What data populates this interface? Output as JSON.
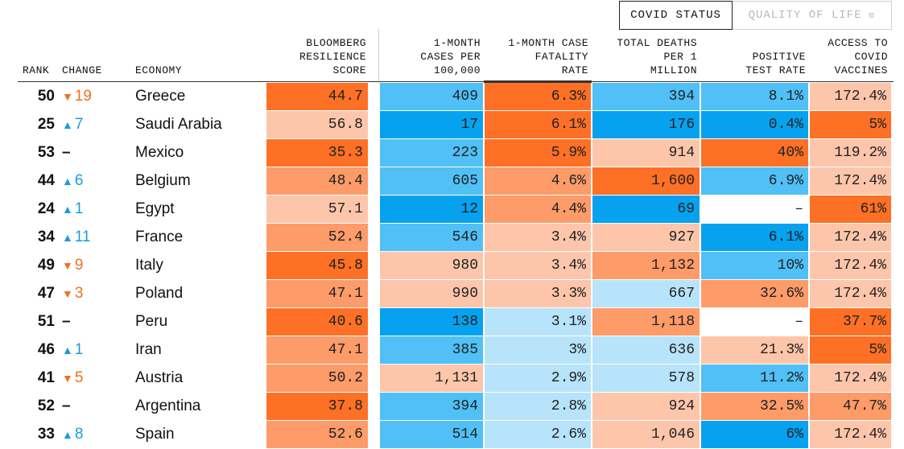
{
  "tabs": {
    "covid_status": "COVID STATUS",
    "quality_of_life": "QUALITY OF LIFE",
    "filter_icon": "filter-icon"
  },
  "columns": {
    "rank": "RANK",
    "change": "CHANGE",
    "economy": "ECONOMY",
    "score": [
      "BLOOMBERG",
      "RESILIENCE",
      "SCORE"
    ],
    "cases": [
      "1-MONTH",
      "CASES PER",
      "100,000"
    ],
    "fatality": [
      "1-MONTH CASE",
      "FATALITY",
      "RATE"
    ],
    "deaths": [
      "TOTAL DEATHS",
      "PER 1",
      "MILLION"
    ],
    "positive": [
      "POSITIVE",
      "TEST RATE"
    ],
    "vaccines": [
      "ACCESS TO",
      "COVID",
      "VACCINES"
    ]
  },
  "colors": {
    "orange_dark": "#fd7025",
    "orange_mid": "#fd9b69",
    "orange_light": "#fdc6ab",
    "blue_dark": "#06a2ef",
    "blue_mid": "#50c0f6",
    "blue_light": "#b7e4fa",
    "empty": "#ffffff",
    "arrow_up": "#1a9bdc",
    "arrow_down": "#f3701f"
  },
  "rows": [
    {
      "rank": "50",
      "dir": "down",
      "change": "19",
      "economy": "Greece",
      "score": "44.7",
      "cases": "409",
      "fatality": "6.3%",
      "deaths": "394",
      "positive": "8.1%",
      "vaccines": "172.4%",
      "c": [
        "od",
        "bm",
        "od",
        "bm",
        "bm",
        "ol"
      ]
    },
    {
      "rank": "25",
      "dir": "up",
      "change": "7",
      "economy": "Saudi Arabia",
      "score": "56.8",
      "cases": "17",
      "fatality": "6.1%",
      "deaths": "176",
      "positive": "0.4%",
      "vaccines": "5%",
      "c": [
        "ol",
        "bd",
        "od",
        "bd",
        "bd",
        "od"
      ]
    },
    {
      "rank": "53",
      "dir": "flat",
      "change": "–",
      "economy": "Mexico",
      "score": "35.3",
      "cases": "223",
      "fatality": "5.9%",
      "deaths": "914",
      "positive": "40%",
      "vaccines": "119.2%",
      "c": [
        "od",
        "bm",
        "od",
        "ol",
        "od",
        "ol"
      ]
    },
    {
      "rank": "44",
      "dir": "up",
      "change": "6",
      "economy": "Belgium",
      "score": "48.4",
      "cases": "605",
      "fatality": "4.6%",
      "deaths": "1,600",
      "positive": "6.9%",
      "vaccines": "172.4%",
      "c": [
        "om",
        "bm",
        "om",
        "od",
        "bm",
        "ol"
      ]
    },
    {
      "rank": "24",
      "dir": "up",
      "change": "1",
      "economy": "Egypt",
      "score": "57.1",
      "cases": "12",
      "fatality": "4.4%",
      "deaths": "69",
      "positive": "–",
      "vaccines": "61%",
      "c": [
        "ol",
        "bd",
        "om",
        "bd",
        "ee",
        "od"
      ]
    },
    {
      "rank": "34",
      "dir": "up",
      "change": "11",
      "economy": "France",
      "score": "52.4",
      "cases": "546",
      "fatality": "3.4%",
      "deaths": "927",
      "positive": "6.1%",
      "vaccines": "172.4%",
      "c": [
        "om",
        "bm",
        "ol",
        "ol",
        "bd",
        "ol"
      ]
    },
    {
      "rank": "49",
      "dir": "down",
      "change": "9",
      "economy": "Italy",
      "score": "45.8",
      "cases": "980",
      "fatality": "3.4%",
      "deaths": "1,132",
      "positive": "10%",
      "vaccines": "172.4%",
      "c": [
        "od",
        "ol",
        "ol",
        "om",
        "bm",
        "ol"
      ]
    },
    {
      "rank": "47",
      "dir": "down",
      "change": "3",
      "economy": "Poland",
      "score": "47.1",
      "cases": "990",
      "fatality": "3.3%",
      "deaths": "667",
      "positive": "32.6%",
      "vaccines": "172.4%",
      "c": [
        "om",
        "ol",
        "ol",
        "bl",
        "om",
        "ol"
      ]
    },
    {
      "rank": "51",
      "dir": "flat",
      "change": "–",
      "economy": "Peru",
      "score": "40.6",
      "cases": "138",
      "fatality": "3.1%",
      "deaths": "1,118",
      "positive": "–",
      "vaccines": "37.7%",
      "c": [
        "od",
        "bd",
        "bl",
        "om",
        "ee",
        "od"
      ]
    },
    {
      "rank": "46",
      "dir": "up",
      "change": "1",
      "economy": "Iran",
      "score": "47.1",
      "cases": "385",
      "fatality": "3%",
      "deaths": "636",
      "positive": "21.3%",
      "vaccines": "5%",
      "c": [
        "om",
        "bm",
        "bl",
        "bl",
        "ol",
        "od"
      ]
    },
    {
      "rank": "41",
      "dir": "down",
      "change": "5",
      "economy": "Austria",
      "score": "50.2",
      "cases": "1,131",
      "fatality": "2.9%",
      "deaths": "578",
      "positive": "11.2%",
      "vaccines": "172.4%",
      "c": [
        "om",
        "ol",
        "bl",
        "bl",
        "bm",
        "ol"
      ]
    },
    {
      "rank": "52",
      "dir": "flat",
      "change": "–",
      "economy": "Argentina",
      "score": "37.8",
      "cases": "394",
      "fatality": "2.8%",
      "deaths": "924",
      "positive": "32.5%",
      "vaccines": "47.7%",
      "c": [
        "od",
        "bm",
        "bl",
        "ol",
        "om",
        "om"
      ]
    },
    {
      "rank": "33",
      "dir": "up",
      "change": "8",
      "economy": "Spain",
      "score": "52.6",
      "cases": "514",
      "fatality": "2.6%",
      "deaths": "1,046",
      "positive": "6%",
      "vaccines": "172.4%",
      "c": [
        "om",
        "bm",
        "bl",
        "ol",
        "bd",
        "ol"
      ]
    }
  ]
}
